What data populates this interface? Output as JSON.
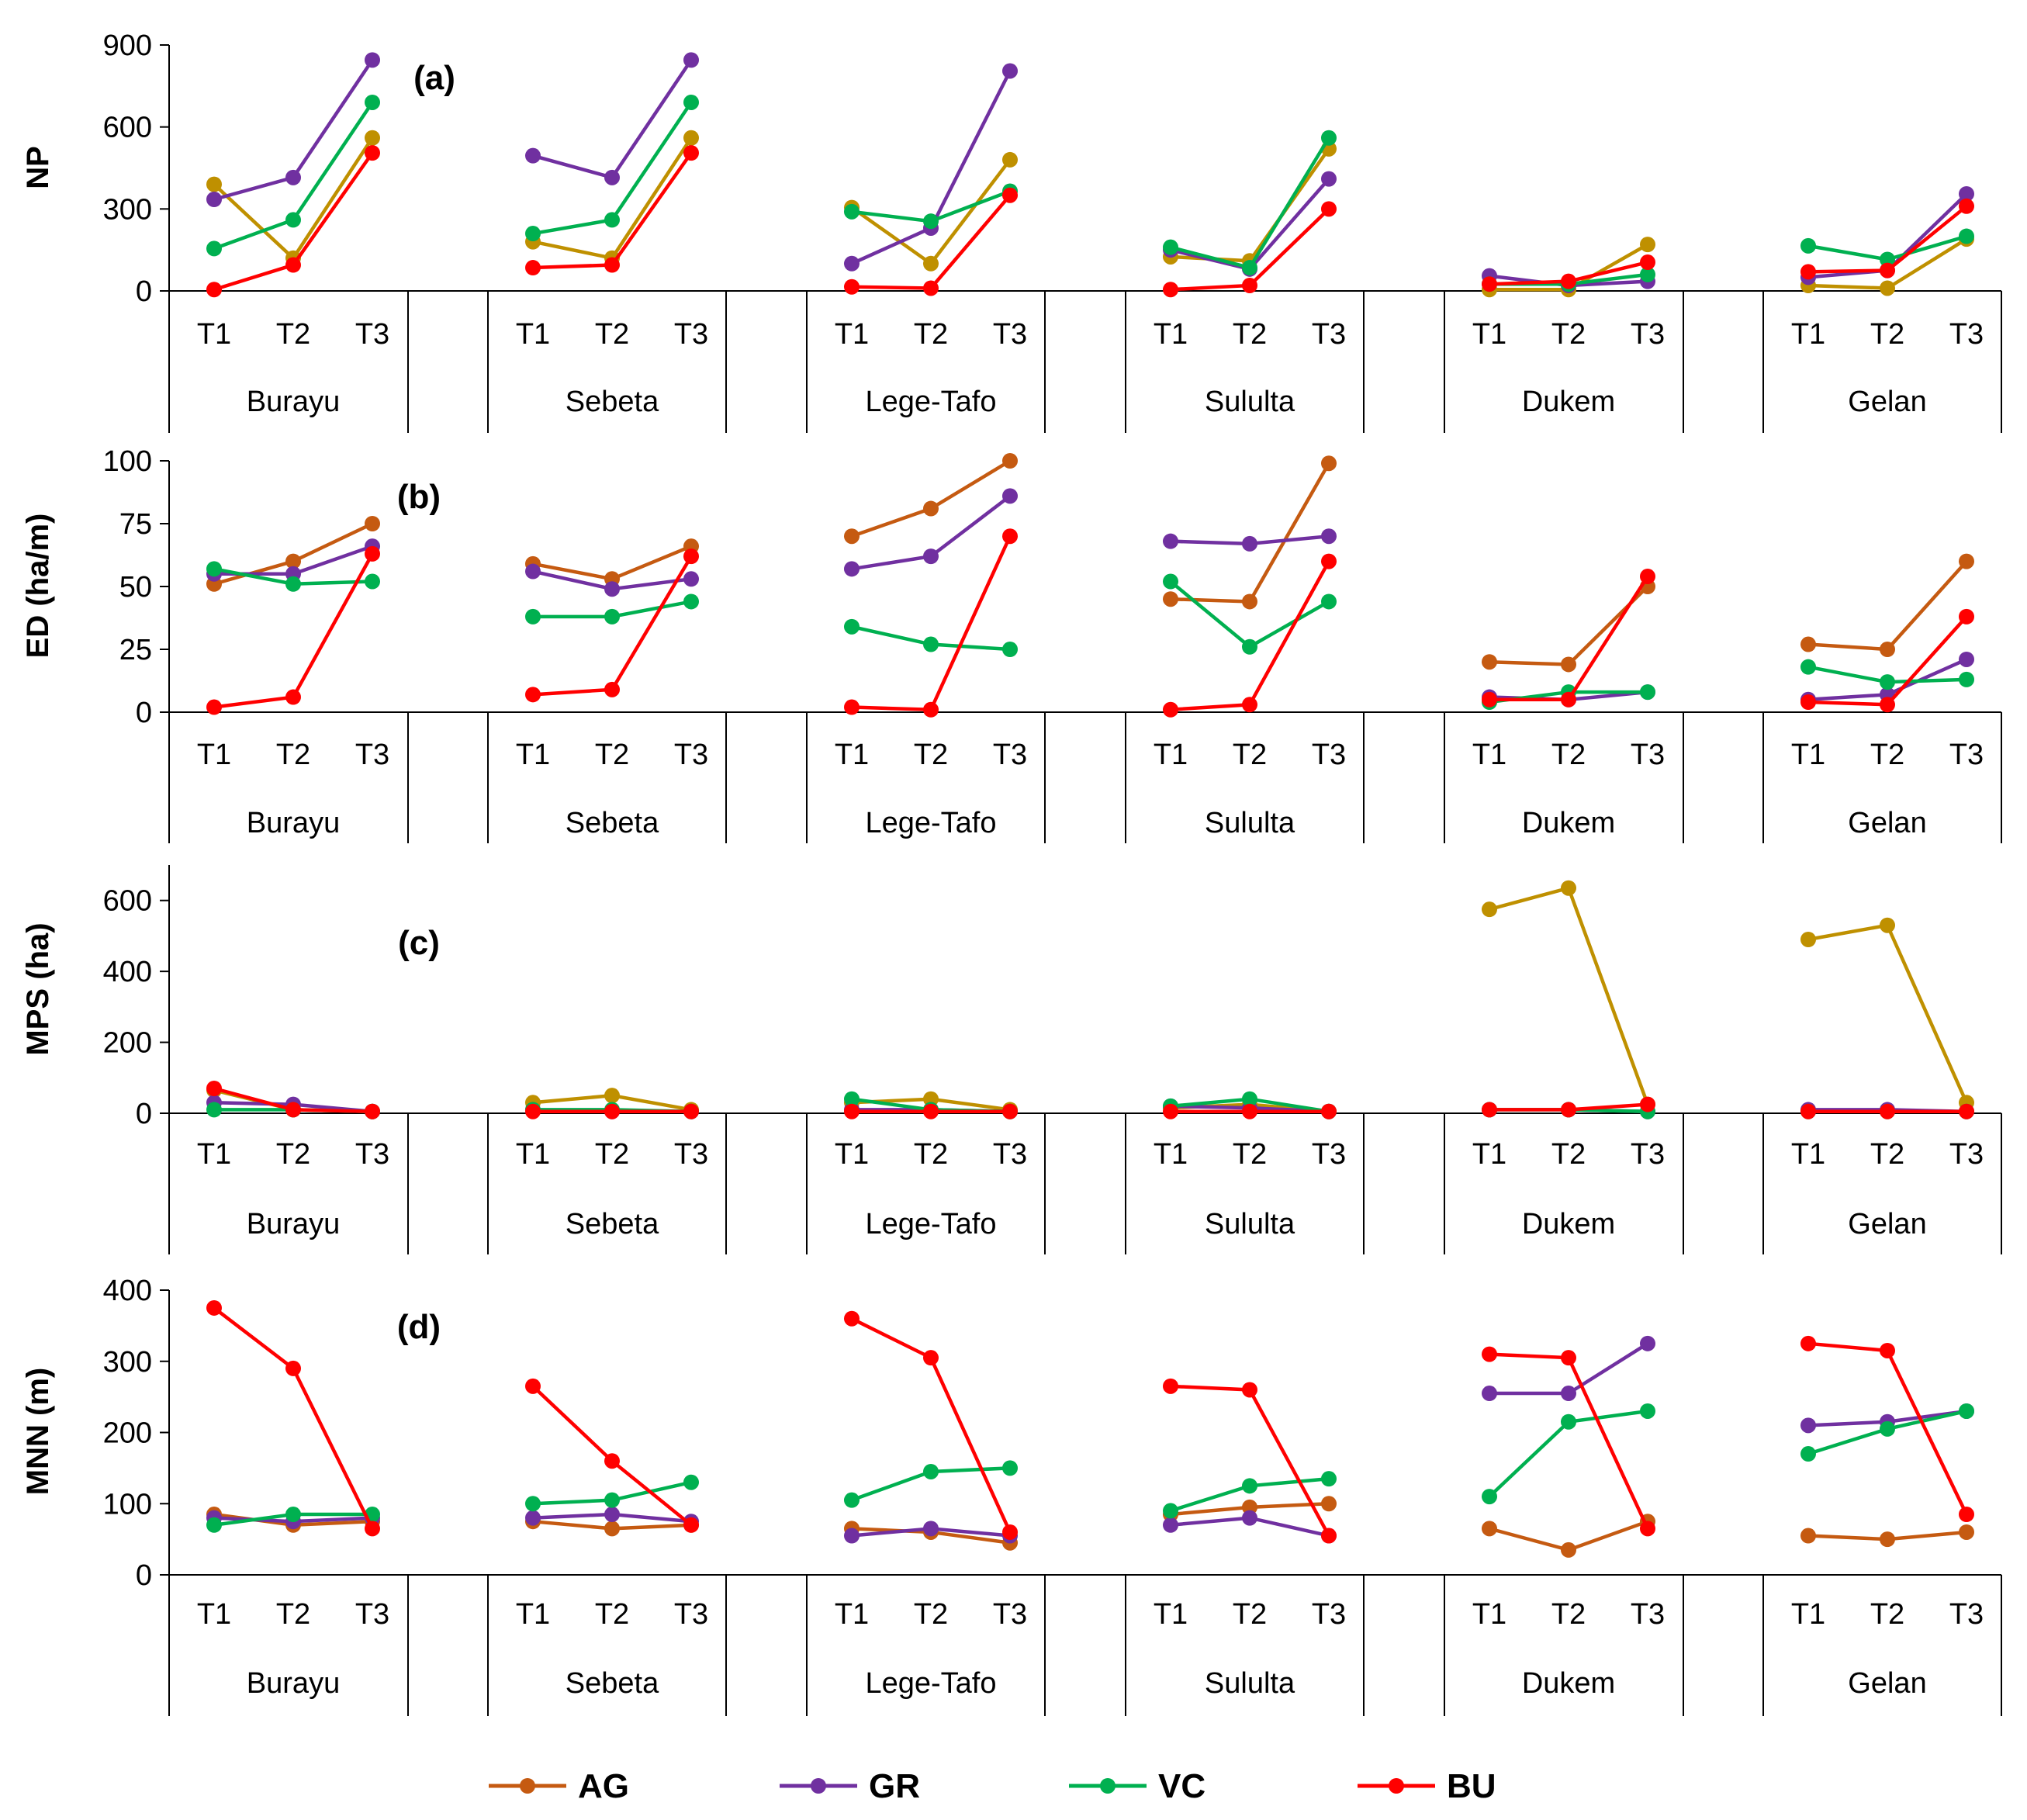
{
  "chart_data": [
    {
      "panel": "(a)",
      "type": "line",
      "ylabel": "NP",
      "yticks": [
        "0",
        "300",
        "600",
        "900"
      ],
      "ylim": [
        0,
        900
      ],
      "groups": [
        "Burayu",
        "Sebeta",
        "Lege-Tafo",
        "Sululta",
        "Dukem",
        "Gelan"
      ],
      "times": [
        "T1",
        "T2",
        "T3"
      ],
      "series": [
        {
          "name": "AG",
          "values": [
            [
              390,
              120,
              560
            ],
            [
              180,
              120,
              560
            ],
            [
              305,
              100,
              480
            ],
            [
              125,
              110,
              520
            ],
            [
              5,
              5,
              170
            ],
            [
              20,
              10,
              190
            ]
          ]
        },
        {
          "name": "GR",
          "values": [
            [
              335,
              415,
              845
            ],
            [
              495,
              415,
              845
            ],
            [
              100,
              230,
              805
            ],
            [
              150,
              80,
              410
            ],
            [
              55,
              20,
              35
            ],
            [
              50,
              75,
              355
            ]
          ]
        },
        {
          "name": "VC",
          "values": [
            [
              155,
              260,
              690
            ],
            [
              210,
              260,
              690
            ],
            [
              290,
              255,
              365
            ],
            [
              160,
              85,
              560
            ],
            [
              25,
              25,
              60
            ],
            [
              165,
              115,
              200
            ]
          ]
        },
        {
          "name": "BU",
          "values": [
            [
              5,
              95,
              505
            ],
            [
              85,
              95,
              505
            ],
            [
              15,
              10,
              350
            ],
            [
              5,
              20,
              300
            ],
            [
              25,
              35,
              105
            ],
            [
              70,
              75,
              310
            ]
          ]
        }
      ]
    },
    {
      "panel": "(b)",
      "type": "line",
      "ylabel": "ED (ha/m)",
      "yticks": [
        "0",
        "25",
        "50",
        "75",
        "100"
      ],
      "ylim": [
        0,
        100
      ],
      "groups": [
        "Burayu",
        "Sebeta",
        "Lege-Tafo",
        "Sululta",
        "Dukem",
        "Gelan"
      ],
      "times": [
        "T1",
        "T2",
        "T3"
      ],
      "series": [
        {
          "name": "AG",
          "values": [
            [
              51,
              60,
              75
            ],
            [
              59,
              53,
              66
            ],
            [
              70,
              81,
              100
            ],
            [
              45,
              44,
              99
            ],
            [
              20,
              19,
              50
            ],
            [
              27,
              25,
              60
            ]
          ]
        },
        {
          "name": "GR",
          "values": [
            [
              55,
              55,
              66
            ],
            [
              56,
              49,
              53
            ],
            [
              57,
              62,
              86
            ],
            [
              68,
              67,
              70
            ],
            [
              6,
              5,
              8
            ],
            [
              5,
              7,
              21
            ]
          ]
        },
        {
          "name": "VC",
          "values": [
            [
              57,
              51,
              52
            ],
            [
              38,
              38,
              44
            ],
            [
              34,
              27,
              25
            ],
            [
              52,
              26,
              44
            ],
            [
              4,
              8,
              8
            ],
            [
              18,
              12,
              13
            ]
          ]
        },
        {
          "name": "BU",
          "values": [
            [
              2,
              6,
              63
            ],
            [
              7,
              9,
              62
            ],
            [
              2,
              1,
              70
            ],
            [
              1,
              3,
              60
            ],
            [
              5,
              5,
              54
            ],
            [
              4,
              3,
              38
            ]
          ]
        }
      ]
    },
    {
      "panel": "(c)",
      "type": "line",
      "ylabel": "MPS (ha)",
      "yticks": [
        "0",
        "200",
        "400",
        "600"
      ],
      "ylim": [
        0,
        700
      ],
      "groups": [
        "Burayu",
        "Sebeta",
        "Lege-Tafo",
        "Sululta",
        "Dukem",
        "Gelan"
      ],
      "times": [
        "T1",
        "T2",
        "T3"
      ],
      "series": [
        {
          "name": "AG",
          "values": [
            [
              65,
              10,
              5
            ],
            [
              30,
              50,
              10
            ],
            [
              30,
              40,
              10
            ],
            [
              15,
              25,
              5
            ],
            [
              575,
              635,
              25
            ],
            [
              490,
              530,
              30
            ]
          ]
        },
        {
          "name": "GR",
          "values": [
            [
              30,
              25,
              5
            ],
            [
              10,
              5,
              5
            ],
            [
              10,
              10,
              5
            ],
            [
              20,
              15,
              5
            ],
            [
              10,
              10,
              5
            ],
            [
              10,
              10,
              5
            ]
          ]
        },
        {
          "name": "VC",
          "values": [
            [
              10,
              10,
              5
            ],
            [
              10,
              10,
              5
            ],
            [
              40,
              10,
              5
            ],
            [
              20,
              40,
              5
            ],
            [
              10,
              10,
              5
            ],
            [
              5,
              5,
              5
            ]
          ]
        },
        {
          "name": "BU",
          "values": [
            [
              70,
              10,
              5
            ],
            [
              5,
              5,
              5
            ],
            [
              5,
              5,
              5
            ],
            [
              5,
              5,
              5
            ],
            [
              10,
              10,
              25
            ],
            [
              5,
              5,
              5
            ]
          ]
        }
      ]
    },
    {
      "panel": "(d)",
      "type": "line",
      "ylabel": "MNN (m)",
      "yticks": [
        "0",
        "100",
        "200",
        "300",
        "400"
      ],
      "ylim": [
        0,
        400
      ],
      "groups": [
        "Burayu",
        "Sebeta",
        "Lege-Tafo",
        "Sululta",
        "Dukem",
        "Gelan"
      ],
      "times": [
        "T1",
        "T2",
        "T3"
      ],
      "series": [
        {
          "name": "AG",
          "values": [
            [
              85,
              70,
              75
            ],
            [
              75,
              65,
              70
            ],
            [
              65,
              60,
              45
            ],
            [
              85,
              95,
              100
            ],
            [
              65,
              35,
              75
            ],
            [
              55,
              50,
              60
            ]
          ]
        },
        {
          "name": "GR",
          "values": [
            [
              80,
              75,
              80
            ],
            [
              80,
              85,
              75
            ],
            [
              55,
              65,
              55
            ],
            [
              70,
              80,
              55
            ],
            [
              255,
              255,
              325
            ],
            [
              210,
              215,
              230
            ]
          ]
        },
        {
          "name": "VC",
          "values": [
            [
              70,
              85,
              85
            ],
            [
              100,
              105,
              130
            ],
            [
              105,
              145,
              150
            ],
            [
              90,
              125,
              135
            ],
            [
              110,
              215,
              230
            ],
            [
              170,
              205,
              230
            ]
          ]
        },
        {
          "name": "BU",
          "values": [
            [
              375,
              290,
              65
            ],
            [
              265,
              160,
              70
            ],
            [
              360,
              305,
              60
            ],
            [
              265,
              260,
              55
            ],
            [
              310,
              305,
              65
            ],
            [
              325,
              315,
              85
            ]
          ]
        }
      ]
    }
  ],
  "legend": [
    {
      "name": "AG",
      "color": "#c55a11"
    },
    {
      "name": "GR",
      "color": "#7030a0"
    },
    {
      "name": "VC",
      "color": "#00b050"
    },
    {
      "name": "BU",
      "color": "#ff0000"
    }
  ],
  "colors": {
    "AG_np": "#bf9000",
    "AG_mps": "#bf9000",
    "AG": "#c55a11",
    "GR": "#7030a0",
    "VC": "#00b050",
    "BU": "#ff0000"
  }
}
